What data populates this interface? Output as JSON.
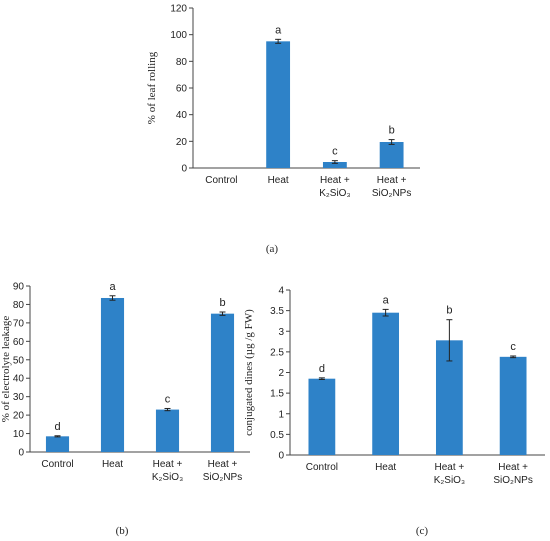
{
  "bar_color": "#2E82C8",
  "chart_data": [
    {
      "type": "bar",
      "panel": "(a)",
      "ylabel": "% of leaf rolling",
      "ylim": [
        0,
        120
      ],
      "yticks": [
        0,
        20,
        40,
        60,
        80,
        100,
        120
      ],
      "categories": [
        [
          "Control"
        ],
        [
          "Heat"
        ],
        [
          "Heat +",
          "K₂SiO₃"
        ],
        [
          "Heat +",
          "SiO₂NPs"
        ]
      ],
      "values": [
        0,
        95,
        4.5,
        19.5
      ],
      "errors": [
        0,
        1.5,
        1.0,
        1.8
      ],
      "letters": [
        "",
        "a",
        "c",
        "b"
      ]
    },
    {
      "type": "bar",
      "panel": "(b)",
      "ylabel": "% of electrolyte leakage",
      "ylim": [
        0,
        90
      ],
      "yticks": [
        0,
        10,
        20,
        30,
        40,
        50,
        60,
        70,
        80,
        90
      ],
      "categories": [
        [
          "Control"
        ],
        [
          "Heat"
        ],
        [
          "Heat +",
          "K₂SiO₃"
        ],
        [
          "Heat +",
          "SiO₂NPs"
        ]
      ],
      "values": [
        8.5,
        83.5,
        23,
        75
      ],
      "errors": [
        0.3,
        1.2,
        0.6,
        0.9
      ],
      "letters": [
        "d",
        "a",
        "c",
        "b"
      ]
    },
    {
      "type": "bar",
      "panel": "(c)",
      "ylabel": "conjugated dines (µg /g FW)",
      "ylim": [
        0,
        4
      ],
      "yticks": [
        "0",
        "0.5",
        "1",
        "1.5",
        "2",
        "2.5",
        "3",
        "3.5",
        "4"
      ],
      "categories": [
        [
          "Control"
        ],
        [
          "Heat"
        ],
        [
          "Heat +",
          "K₂SiO₃"
        ],
        [
          "Heat +",
          "SiO₂NPs"
        ]
      ],
      "values": [
        1.85,
        3.45,
        2.78,
        2.38
      ],
      "errors": [
        0.02,
        0.08,
        0.5,
        0.02
      ],
      "letters": [
        "d",
        "a",
        "b",
        "c"
      ]
    }
  ]
}
